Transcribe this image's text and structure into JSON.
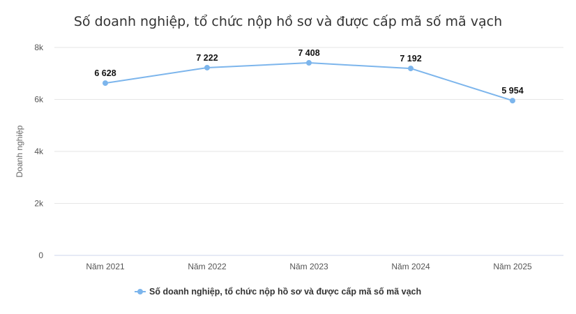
{
  "chart_data": {
    "type": "line",
    "title": "Số doanh nghiệp, tổ chức nộp hồ sơ và được cấp mã số mã vạch",
    "xlabel": "",
    "ylabel": "Doanh nghiệp",
    "categories": [
      "Năm 2021",
      "Năm 2022",
      "Năm 2023",
      "Năm 2024",
      "Năm 2025"
    ],
    "series": [
      {
        "name": "Số doanh nghiệp, tổ chức nộp hồ sơ và được cấp mã số mã vạch",
        "values": [
          6628,
          7222,
          7408,
          7192,
          5954
        ],
        "data_labels": [
          "6 628",
          "7 222",
          "7 408",
          "7 192",
          "5 954"
        ],
        "color": "#7cb5ec"
      }
    ],
    "ylim": [
      0,
      8000
    ],
    "yticks": [
      0,
      2000,
      4000,
      6000,
      8000
    ],
    "ytick_labels": [
      "0",
      "2k",
      "4k",
      "6k",
      "8k"
    ],
    "grid": true,
    "legend_position": "bottom-center"
  }
}
